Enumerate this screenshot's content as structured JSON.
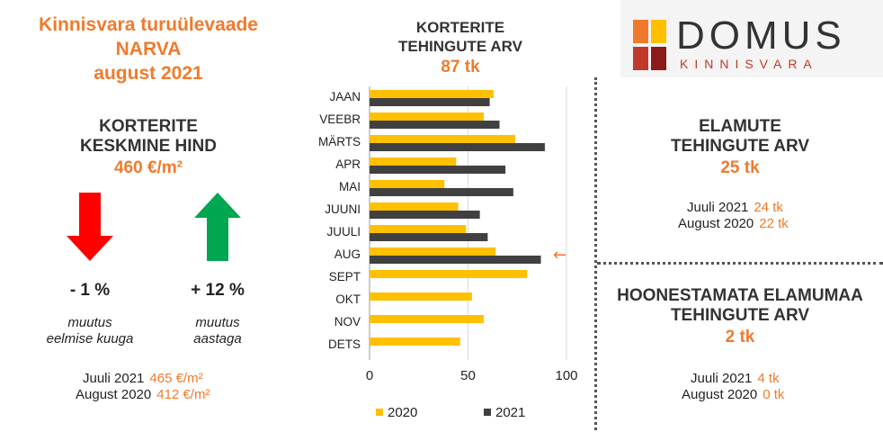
{
  "title": {
    "line1": "Kinnisvara turuülevaade",
    "line2": "NARVA",
    "line3": "august 2021"
  },
  "avg_price": {
    "label_line1": "KORTERITE",
    "label_line2": "KESKMINE HIND",
    "value": "460 €/m²",
    "monthly_change": "- 1 %",
    "monthly_note_line1": "muutus",
    "monthly_note_line2": "eelmise kuuga",
    "yearly_change": "+ 12 %",
    "yearly_note_line1": "muutus",
    "yearly_note_line2": "aastaga",
    "compare": [
      {
        "label": "Juuli 2021",
        "value": "465 €/m²"
      },
      {
        "label": "August 2020",
        "value": "412 €/m²"
      }
    ],
    "down_color": "#ff0000",
    "up_color": "#00a650"
  },
  "chart_header": {
    "title_line1": "KORTERITE",
    "title_line2": "TEHINGUTE ARV",
    "total": "87 tk"
  },
  "chart_data": {
    "type": "bar",
    "orientation": "horizontal",
    "categories": [
      "JAAN",
      "VEEBR",
      "MÄRTS",
      "APR",
      "MAI",
      "JUUNI",
      "JUULI",
      "AUG",
      "SEPT",
      "OKT",
      "NOV",
      "DETS"
    ],
    "series": [
      {
        "name": "2020",
        "color": "#ffc000",
        "values": [
          63,
          58,
          74,
          44,
          38,
          45,
          49,
          64,
          80,
          52,
          58,
          46
        ]
      },
      {
        "name": "2021",
        "color": "#404040",
        "values": [
          61,
          66,
          89,
          69,
          73,
          56,
          60,
          87,
          null,
          null,
          null,
          null
        ]
      }
    ],
    "xlim": [
      0,
      100
    ],
    "xticks": [
      "0",
      "50",
      "100"
    ],
    "grid": true,
    "legend_position": "bottom",
    "highlight_category": "AUG",
    "highlight_marker": "←"
  },
  "logo": {
    "word": "DOMUS",
    "sub": "KINNISVARA",
    "colors": [
      "#f07a2c",
      "#ffc000",
      "#c0392b",
      "#8b1a1a"
    ]
  },
  "houses": {
    "label_line1": "ELAMUTE",
    "label_line2": "TEHINGUTE ARV",
    "value": "25 tk",
    "compare": [
      {
        "label": "Juuli 2021",
        "value": "24 tk"
      },
      {
        "label": "August 2020",
        "value": "22 tk"
      }
    ]
  },
  "land": {
    "label_line1": "HOONESTAMATA ELAMUMAA",
    "label_line2": "TEHINGUTE ARV",
    "value": "2 tk",
    "compare": [
      {
        "label": "Juuli 2021",
        "value": "4 tk"
      },
      {
        "label": "August 2020",
        "value": "0 tk"
      }
    ]
  }
}
